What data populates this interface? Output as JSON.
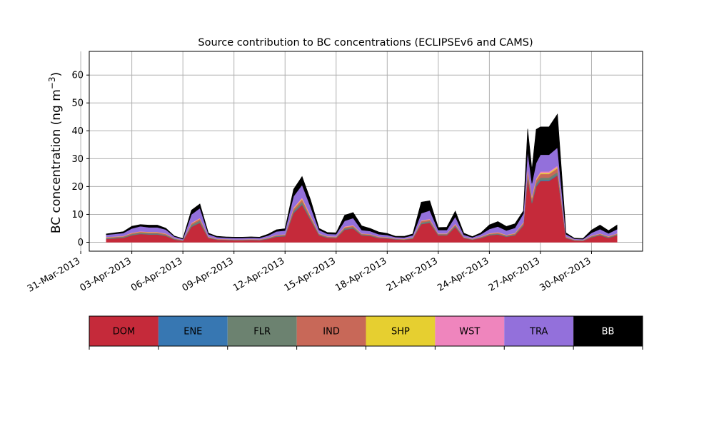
{
  "chart_data": {
    "type": "area",
    "stacked": true,
    "title": "Source contribution to BC concentrations (ECLIPSEv6 and CAMS)",
    "ylabel_base": "BC concentration (ng m",
    "ylabel_exp": "−3",
    "ylabel_close": ")",
    "xlabel": "",
    "ylim": [
      -3.2,
      68.5
    ],
    "xlim_days": [
      "2013-03-31T12:00",
      "2013-05-03T00:00"
    ],
    "grid": true,
    "y_ticks": [
      0,
      10,
      20,
      30,
      40,
      50,
      60
    ],
    "x_ticks": [
      {
        "date": "2013-03-31",
        "label": "31-Mar-2013"
      },
      {
        "date": "2013-04-03",
        "label": "03-Apr-2013"
      },
      {
        "date": "2013-04-06",
        "label": "06-Apr-2013"
      },
      {
        "date": "2013-04-09",
        "label": "09-Apr-2013"
      },
      {
        "date": "2013-04-12",
        "label": "12-Apr-2013"
      },
      {
        "date": "2013-04-15",
        "label": "15-Apr-2013"
      },
      {
        "date": "2013-04-18",
        "label": "18-Apr-2013"
      },
      {
        "date": "2013-04-21",
        "label": "21-Apr-2013"
      },
      {
        "date": "2013-04-24",
        "label": "24-Apr-2013"
      },
      {
        "date": "2013-04-27",
        "label": "27-Apr-2013"
      },
      {
        "date": "2013-04-30",
        "label": "30-Apr-2013"
      }
    ],
    "x": [
      "2013-04-01T12:00",
      "2013-04-02T00:00",
      "2013-04-02T12:00",
      "2013-04-03T00:00",
      "2013-04-03T12:00",
      "2013-04-04T00:00",
      "2013-04-04T12:00",
      "2013-04-05T00:00",
      "2013-04-05T12:00",
      "2013-04-06T00:00",
      "2013-04-06T12:00",
      "2013-04-07T00:00",
      "2013-04-07T12:00",
      "2013-04-08T00:00",
      "2013-04-08T12:00",
      "2013-04-09T00:00",
      "2013-04-09T12:00",
      "2013-04-10T00:00",
      "2013-04-10T12:00",
      "2013-04-11T00:00",
      "2013-04-11T12:00",
      "2013-04-12T00:00",
      "2013-04-12T12:00",
      "2013-04-13T00:00",
      "2013-04-13T12:00",
      "2013-04-14T00:00",
      "2013-04-14T12:00",
      "2013-04-15T00:00",
      "2013-04-15T12:00",
      "2013-04-16T00:00",
      "2013-04-16T12:00",
      "2013-04-17T00:00",
      "2013-04-17T12:00",
      "2013-04-18T00:00",
      "2013-04-18T12:00",
      "2013-04-19T00:00",
      "2013-04-19T12:00",
      "2013-04-20T00:00",
      "2013-04-20T12:00",
      "2013-04-21T00:00",
      "2013-04-21T12:00",
      "2013-04-22T00:00",
      "2013-04-22T12:00",
      "2013-04-23T00:00",
      "2013-04-23T12:00",
      "2013-04-24T00:00",
      "2013-04-24T12:00",
      "2013-04-25T00:00",
      "2013-04-25T12:00",
      "2013-04-26T00:00",
      "2013-04-26T06:00",
      "2013-04-26T12:00",
      "2013-04-26T18:00",
      "2013-04-27T00:00",
      "2013-04-27T12:00",
      "2013-04-28T00:00",
      "2013-04-28T12:00",
      "2013-04-29T00:00",
      "2013-04-29T12:00",
      "2013-04-30T00:00",
      "2013-04-30T12:00",
      "2013-05-01T00:00",
      "2013-05-01T12:00"
    ],
    "series": [
      {
        "name": "DOM",
        "color": "#c52a3a",
        "values": [
          1.2,
          1.4,
          1.6,
          2.5,
          3.0,
          2.8,
          2.8,
          2.3,
          1.0,
          0.5,
          5.5,
          7.0,
          1.5,
          0.9,
          0.8,
          0.7,
          0.7,
          0.8,
          0.7,
          1.2,
          2.0,
          2.2,
          10.5,
          13.5,
          8.0,
          2.5,
          1.6,
          1.5,
          4.5,
          5.0,
          2.5,
          2.3,
          1.5,
          1.4,
          1.0,
          0.9,
          1.3,
          6.5,
          7.0,
          2.5,
          2.5,
          5.5,
          1.5,
          0.9,
          1.5,
          2.5,
          2.8,
          2.0,
          2.5,
          6.0,
          23.0,
          14.0,
          20.0,
          22.0,
          22.0,
          24.0,
          1.5,
          0.6,
          0.5,
          1.8,
          2.5,
          1.6,
          2.5
        ]
      },
      {
        "name": "ENE",
        "color": "#3777b2",
        "values": [
          0.05,
          0.05,
          0.05,
          0.05,
          0.05,
          0.05,
          0.05,
          0.05,
          0.05,
          0.05,
          0.1,
          0.1,
          0.05,
          0.05,
          0.05,
          0.05,
          0.05,
          0.05,
          0.05,
          0.05,
          0.05,
          0.05,
          0.2,
          0.2,
          0.1,
          0.05,
          0.05,
          0.05,
          0.1,
          0.1,
          0.05,
          0.05,
          0.05,
          0.05,
          0.05,
          0.05,
          0.05,
          0.1,
          0.1,
          0.05,
          0.05,
          0.1,
          0.05,
          0.05,
          0.05,
          0.05,
          0.05,
          0.05,
          0.05,
          0.1,
          0.3,
          0.2,
          0.3,
          0.3,
          0.3,
          0.3,
          0.05,
          0.05,
          0.05,
          0.05,
          0.05,
          0.05,
          0.05
        ]
      },
      {
        "name": "FLR",
        "color": "#6c8270",
        "values": [
          0.3,
          0.3,
          0.3,
          0.4,
          0.4,
          0.4,
          0.4,
          0.3,
          0.2,
          0.1,
          0.6,
          0.7,
          0.2,
          0.1,
          0.1,
          0.1,
          0.1,
          0.1,
          0.1,
          0.2,
          0.3,
          0.3,
          0.6,
          0.8,
          0.5,
          0.3,
          0.2,
          0.2,
          0.4,
          0.4,
          0.3,
          0.3,
          0.2,
          0.2,
          0.1,
          0.1,
          0.2,
          0.5,
          0.5,
          0.3,
          0.3,
          0.4,
          0.2,
          0.1,
          0.2,
          0.3,
          0.3,
          0.3,
          0.3,
          0.4,
          1.0,
          0.7,
          0.8,
          0.9,
          0.9,
          0.9,
          0.2,
          0.1,
          0.1,
          0.2,
          0.3,
          0.2,
          0.3
        ]
      },
      {
        "name": "IND",
        "color": "#c86858",
        "values": [
          0.2,
          0.2,
          0.2,
          0.3,
          0.3,
          0.3,
          0.3,
          0.3,
          0.1,
          0.1,
          0.5,
          0.6,
          0.2,
          0.1,
          0.1,
          0.1,
          0.1,
          0.1,
          0.1,
          0.1,
          0.2,
          0.2,
          0.7,
          0.9,
          0.6,
          0.2,
          0.2,
          0.2,
          0.4,
          0.4,
          0.2,
          0.2,
          0.2,
          0.1,
          0.1,
          0.1,
          0.1,
          0.5,
          0.5,
          0.2,
          0.2,
          0.4,
          0.1,
          0.1,
          0.2,
          0.2,
          0.3,
          0.2,
          0.3,
          0.5,
          1.5,
          1.0,
          1.2,
          1.3,
          1.3,
          1.4,
          0.2,
          0.1,
          0.1,
          0.2,
          0.2,
          0.2,
          0.2
        ]
      },
      {
        "name": "SHP",
        "color": "#e6cf30",
        "values": [
          0.05,
          0.05,
          0.05,
          0.1,
          0.1,
          0.1,
          0.1,
          0.1,
          0.05,
          0.05,
          0.1,
          0.15,
          0.05,
          0.05,
          0.05,
          0.05,
          0.05,
          0.05,
          0.05,
          0.05,
          0.05,
          0.05,
          0.2,
          0.3,
          0.2,
          0.05,
          0.05,
          0.05,
          0.1,
          0.1,
          0.05,
          0.05,
          0.05,
          0.05,
          0.05,
          0.05,
          0.05,
          0.1,
          0.1,
          0.05,
          0.05,
          0.1,
          0.05,
          0.05,
          0.05,
          0.1,
          0.1,
          0.05,
          0.1,
          0.1,
          0.4,
          0.3,
          0.3,
          0.4,
          0.4,
          0.4,
          0.05,
          0.05,
          0.05,
          0.05,
          0.05,
          0.05,
          0.05
        ]
      },
      {
        "name": "WST",
        "color": "#ef85bd",
        "values": [
          0.1,
          0.1,
          0.1,
          0.1,
          0.1,
          0.1,
          0.1,
          0.1,
          0.05,
          0.05,
          0.2,
          0.2,
          0.1,
          0.05,
          0.05,
          0.05,
          0.05,
          0.05,
          0.05,
          0.1,
          0.1,
          0.1,
          0.3,
          0.4,
          0.3,
          0.1,
          0.1,
          0.1,
          0.2,
          0.2,
          0.1,
          0.1,
          0.1,
          0.1,
          0.05,
          0.05,
          0.1,
          0.2,
          0.2,
          0.1,
          0.1,
          0.2,
          0.1,
          0.05,
          0.1,
          0.1,
          0.1,
          0.1,
          0.1,
          0.2,
          0.5,
          0.4,
          0.4,
          0.5,
          0.5,
          0.5,
          0.1,
          0.05,
          0.05,
          0.1,
          0.1,
          0.1,
          0.1
        ]
      },
      {
        "name": "TRA",
        "color": "#9370db",
        "values": [
          0.8,
          0.9,
          1.0,
          1.5,
          1.8,
          1.6,
          1.6,
          1.4,
          0.6,
          0.3,
          3.0,
          3.5,
          0.8,
          0.6,
          0.5,
          0.5,
          0.5,
          0.5,
          0.5,
          0.7,
          1.2,
          1.3,
          4.0,
          4.5,
          3.0,
          1.2,
          0.8,
          0.8,
          2.0,
          2.5,
          1.2,
          1.0,
          0.8,
          0.7,
          0.5,
          0.5,
          0.7,
          2.5,
          3.0,
          1.2,
          1.2,
          2.5,
          0.7,
          0.5,
          0.8,
          1.5,
          2.0,
          1.5,
          1.8,
          3.0,
          6.0,
          4.5,
          5.5,
          6.0,
          6.0,
          6.5,
          0.8,
          0.3,
          0.3,
          1.0,
          1.5,
          1.0,
          1.5
        ]
      },
      {
        "name": "BB",
        "color": "#000000",
        "values": [
          0.3,
          0.4,
          0.5,
          0.8,
          0.6,
          0.8,
          0.8,
          0.5,
          0.2,
          0.2,
          1.5,
          1.5,
          0.4,
          0.3,
          0.3,
          0.3,
          0.3,
          0.3,
          0.3,
          0.5,
          0.6,
          0.7,
          2.5,
          3.0,
          2.5,
          0.6,
          0.5,
          0.5,
          2.0,
          2.0,
          1.5,
          1.0,
          0.8,
          0.6,
          0.3,
          0.4,
          0.5,
          4.0,
          3.5,
          0.9,
          1.0,
          2.0,
          0.6,
          0.3,
          0.5,
          1.5,
          1.8,
          1.5,
          1.5,
          1.0,
          8.0,
          5.0,
          12.0,
          10.0,
          10.0,
          12.0,
          0.5,
          0.2,
          0.2,
          1.0,
          1.5,
          1.0,
          1.5
        ]
      }
    ]
  }
}
